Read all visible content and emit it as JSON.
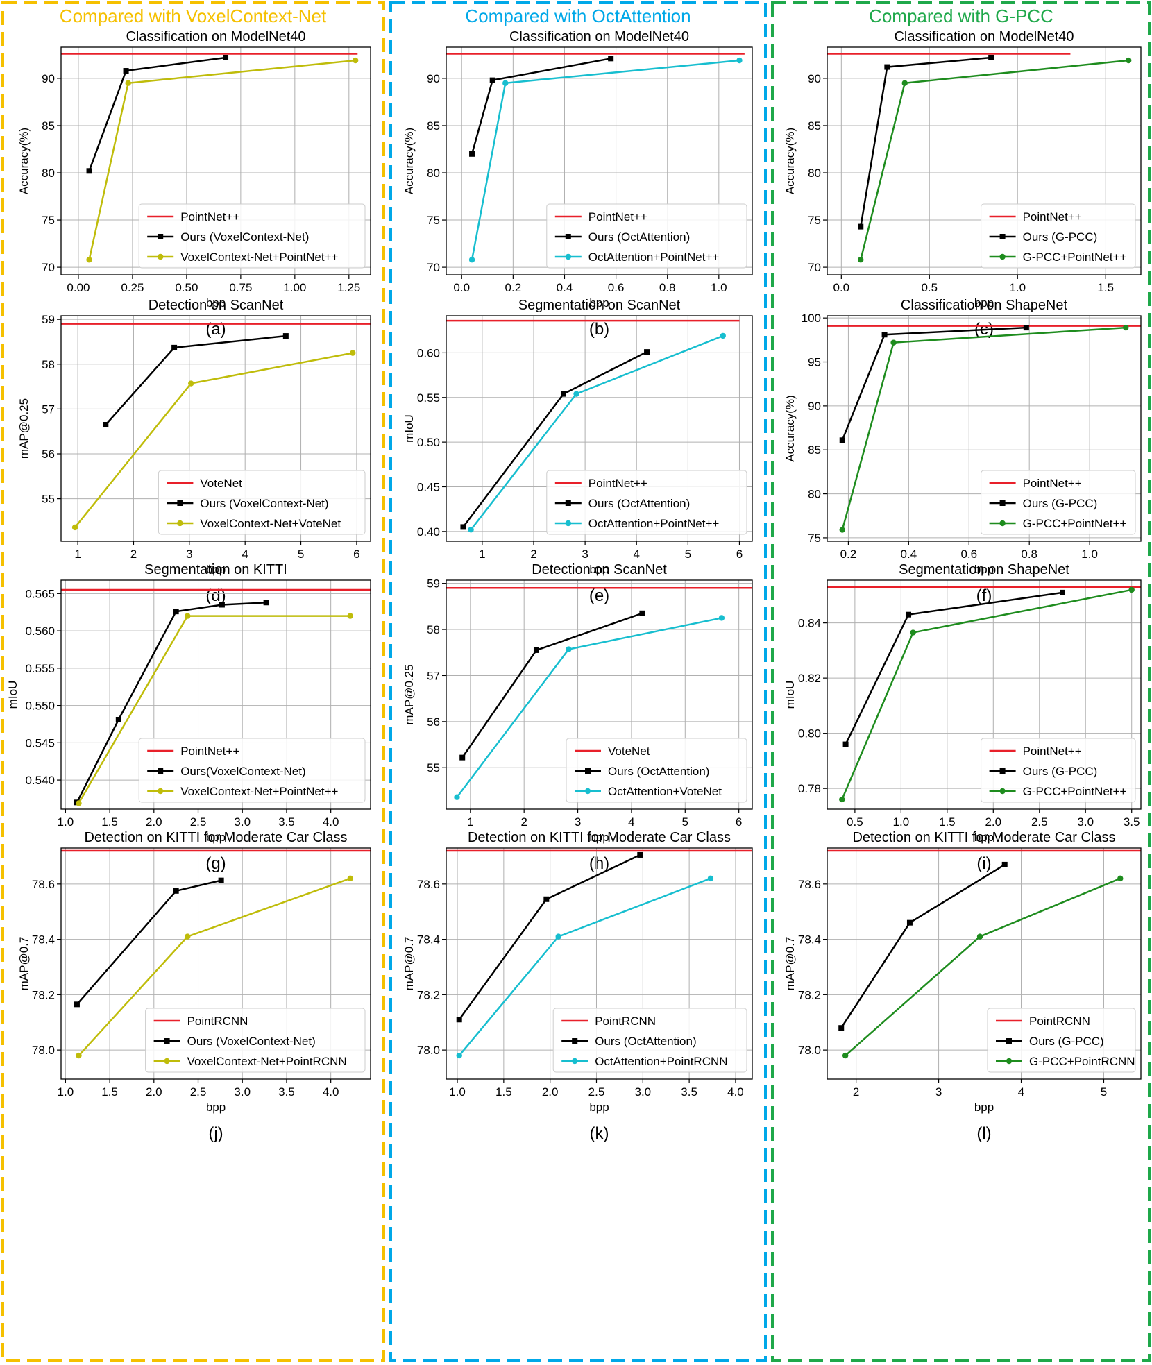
{
  "colors": {
    "yellow": "#F5C000",
    "blue": "#00A8E8",
    "green": "#1FA84A",
    "olive": "#BFBC0A",
    "teal": "#17BECF",
    "dkgreen": "#1E8C1E",
    "red": "#E8202A",
    "black": "#000000"
  },
  "columns": [
    {
      "title": "Compared with VoxelContext-Net",
      "color": "yellow"
    },
    {
      "title": "Compared with OctAttention",
      "color": "blue"
    },
    {
      "title": "Compared with G-PCC",
      "color": "green"
    }
  ],
  "chart_data": [
    {
      "panel": "(a)",
      "type": "line",
      "title": "Classification on ModelNet40",
      "xlabel": "bpp",
      "ylabel": "Accuracy(%)",
      "xlim": [
        -0.08,
        1.35
      ],
      "ylim": [
        69.2,
        93.3
      ],
      "xticks": [
        0,
        0.25,
        0.5,
        0.75,
        1,
        1.25
      ],
      "xtick_labels": [
        "0.00",
        "0.25",
        "0.50",
        "0.75",
        "1.00",
        "1.25"
      ],
      "yticks": [
        70,
        75,
        80,
        85,
        90
      ],
      "yticks_labels": [
        "70",
        "75",
        "80",
        "85",
        "90"
      ],
      "baseline": {
        "name": "PointNet++",
        "value": 92.6,
        "x_end": 1.29
      },
      "series": [
        {
          "name": "Ours (VoxelContext-Net)",
          "color": "black",
          "marker": "square",
          "x": [
            0.05,
            0.22,
            0.68
          ],
          "y": [
            80.2,
            90.8,
            92.2
          ]
        },
        {
          "name": "VoxelContext-Net+PointNet++",
          "color": "olive",
          "marker": "circle",
          "x": [
            0.05,
            0.23,
            1.28
          ],
          "y": [
            70.8,
            89.5,
            91.9
          ]
        }
      ]
    },
    {
      "panel": "(b)",
      "type": "line",
      "title": "Classification on ModelNet40",
      "xlabel": "bpp",
      "ylabel": "Accuracy(%)",
      "xlim": [
        -0.06,
        1.13
      ],
      "ylim": [
        69.2,
        93.3
      ],
      "xticks": [
        0,
        0.2,
        0.4,
        0.6,
        0.8,
        1
      ],
      "xtick_labels": [
        "0.0",
        "0.2",
        "0.4",
        "0.6",
        "0.8",
        "1.0"
      ],
      "yticks": [
        70,
        75,
        80,
        85,
        90
      ],
      "yticks_labels": [
        "70",
        "75",
        "80",
        "85",
        "90"
      ],
      "baseline": {
        "name": "PointNet++",
        "value": 92.6,
        "x_end": 1.1
      },
      "series": [
        {
          "name": "Ours (OctAttention)",
          "color": "black",
          "marker": "square",
          "x": [
            0.04,
            0.12,
            0.58
          ],
          "y": [
            82.0,
            89.8,
            92.1
          ]
        },
        {
          "name": "OctAttention+PointNet++",
          "color": "teal",
          "marker": "circle",
          "x": [
            0.04,
            0.17,
            1.08
          ],
          "y": [
            70.8,
            89.5,
            91.9
          ]
        }
      ]
    },
    {
      "panel": "(c)",
      "type": "line",
      "title": "Classification on ModelNet40",
      "xlabel": "bpp",
      "ylabel": "Accuracy(%)",
      "xlim": [
        -0.08,
        1.7
      ],
      "ylim": [
        69.2,
        93.3
      ],
      "xticks": [
        0,
        0.5,
        1,
        1.5
      ],
      "xtick_labels": [
        "0.0",
        "0.5",
        "1.0",
        "1.5"
      ],
      "yticks": [
        70,
        75,
        80,
        85,
        90
      ],
      "yticks_labels": [
        "70",
        "75",
        "80",
        "85",
        "90"
      ],
      "baseline": {
        "name": "PointNet++",
        "value": 92.6,
        "x_end": 1.3
      },
      "series": [
        {
          "name": "Ours (G-PCC)",
          "color": "black",
          "marker": "square",
          "x": [
            0.11,
            0.26,
            0.85
          ],
          "y": [
            74.3,
            91.2,
            92.2
          ]
        },
        {
          "name": "G-PCC+PointNet++",
          "color": "dkgreen",
          "marker": "circle",
          "x": [
            0.11,
            0.36,
            1.63
          ],
          "y": [
            70.8,
            89.5,
            91.9
          ]
        }
      ]
    },
    {
      "panel": "(d)",
      "type": "line",
      "title": "Detection on ScanNet",
      "xlabel": "bpp",
      "ylabel": "mAP@0.25",
      "xlim": [
        0.7,
        6.25
      ],
      "ylim": [
        54.05,
        59.08
      ],
      "xticks": [
        1,
        2,
        3,
        4,
        5,
        6
      ],
      "xtick_labels": [
        "1",
        "2",
        "3",
        "4",
        "5",
        "6"
      ],
      "yticks": [
        55,
        56,
        57,
        58,
        59
      ],
      "yticks_labels": [
        "55",
        "56",
        "57",
        "58",
        "59"
      ],
      "baseline": {
        "name": "VoteNet",
        "value": 58.9,
        "x_end": 6.25
      },
      "series": [
        {
          "name": "Ours (VoxelContext-Net)",
          "color": "black",
          "marker": "square",
          "x": [
            1.5,
            2.73,
            4.73
          ],
          "y": [
            56.65,
            58.37,
            58.63
          ]
        },
        {
          "name": "VoxelContext-Net+VoteNet",
          "color": "olive",
          "marker": "circle",
          "x": [
            0.95,
            3.03,
            5.93
          ],
          "y": [
            54.36,
            57.57,
            58.25
          ]
        }
      ]
    },
    {
      "panel": "(e)",
      "type": "line",
      "title": "Segmentation on ScanNet",
      "xlabel": "bpp",
      "ylabel": "mIoU",
      "xlim": [
        0.3,
        6.25
      ],
      "ylim": [
        0.389,
        0.6415
      ],
      "xticks": [
        1,
        2,
        3,
        4,
        5,
        6
      ],
      "xtick_labels": [
        "1",
        "2",
        "3",
        "4",
        "5",
        "6"
      ],
      "yticks": [
        0.4,
        0.45,
        0.5,
        0.55,
        0.6
      ],
      "yticks_labels": [
        "0.40",
        "0.45",
        "0.50",
        "0.55",
        "0.60"
      ],
      "baseline": {
        "name": "PointNet++",
        "value": 0.636,
        "x_end": 6.0
      },
      "series": [
        {
          "name": "Ours (OctAttention)",
          "color": "black",
          "marker": "square",
          "x": [
            0.63,
            2.58,
            4.2
          ],
          "y": [
            0.405,
            0.554,
            0.601
          ]
        },
        {
          "name": "OctAttention+PointNet++",
          "color": "teal",
          "marker": "circle",
          "x": [
            0.78,
            2.83,
            5.68
          ],
          "y": [
            0.402,
            0.554,
            0.619
          ]
        }
      ]
    },
    {
      "panel": "(f)",
      "type": "line",
      "title": "Classification on ShapeNet",
      "xlabel": "bpp",
      "ylabel": "Accuracy(%)",
      "xlim": [
        0.13,
        1.17
      ],
      "ylim": [
        74.6,
        100.25
      ],
      "xticks": [
        0.2,
        0.4,
        0.6,
        0.8,
        1
      ],
      "xtick_labels": [
        "0.2",
        "0.4",
        "0.6",
        "0.8",
        "1.0"
      ],
      "yticks": [
        75,
        80,
        85,
        90,
        95,
        100
      ],
      "yticks_labels": [
        "75",
        "80",
        "85",
        "90",
        "95",
        "100"
      ],
      "baseline": {
        "name": "PointNet++",
        "value": 99.1,
        "x_end": 1.17
      },
      "series": [
        {
          "name": "Ours (G-PCC)",
          "color": "black",
          "marker": "square",
          "x": [
            0.18,
            0.32,
            0.79
          ],
          "y": [
            86.1,
            98.1,
            98.9
          ]
        },
        {
          "name": "G-PCC+PointNet++",
          "color": "dkgreen",
          "marker": "circle",
          "x": [
            0.18,
            0.35,
            1.12
          ],
          "y": [
            75.9,
            97.2,
            98.9
          ]
        }
      ]
    },
    {
      "panel": "(g)",
      "type": "line",
      "title": "Segmentation on KITTI",
      "xlabel": "bpp",
      "ylabel": "mIoU",
      "xlim": [
        0.95,
        4.45
      ],
      "ylim": [
        0.5361,
        0.5668
      ],
      "xticks": [
        1,
        1.5,
        2,
        2.5,
        3,
        3.5,
        4
      ],
      "xtick_labels": [
        "1.0",
        "1.5",
        "2.0",
        "2.5",
        "3.0",
        "3.5",
        "4.0"
      ],
      "yticks": [
        0.54,
        0.545,
        0.55,
        0.555,
        0.56,
        0.565
      ],
      "yticks_labels": [
        "0.540",
        "0.545",
        "0.550",
        "0.555",
        "0.560",
        "0.565"
      ],
      "baseline": {
        "name": "PointNet++",
        "value": 0.5655,
        "x_end": 4.45
      },
      "series": [
        {
          "name": "Ours(VoxelContext-Net)",
          "color": "black",
          "marker": "square",
          "x": [
            1.13,
            1.6,
            2.25,
            2.77,
            3.27
          ],
          "y": [
            0.537,
            0.5481,
            0.5626,
            0.5635,
            0.5638
          ]
        },
        {
          "name": "VoxelContext-Net+PointNet++",
          "color": "olive",
          "marker": "circle",
          "x": [
            1.15,
            2.38,
            4.22
          ],
          "y": [
            0.5369,
            0.562,
            0.562
          ]
        }
      ]
    },
    {
      "panel": "(h)",
      "type": "line",
      "title": "Detection on ScanNet",
      "xlabel": "bpp",
      "ylabel": "mAP@0.25",
      "xlim": [
        0.55,
        6.25
      ],
      "ylim": [
        54.1,
        59.07
      ],
      "xticks": [
        1,
        2,
        3,
        4,
        5,
        6
      ],
      "xtick_labels": [
        "1",
        "2",
        "3",
        "4",
        "5",
        "6"
      ],
      "yticks": [
        55,
        56,
        57,
        58,
        59
      ],
      "yticks_labels": [
        "55",
        "56",
        "57",
        "58",
        "59"
      ],
      "baseline": {
        "name": "VoteNet",
        "value": 58.9,
        "x_end": 6.25
      },
      "series": [
        {
          "name": "Ours (OctAttention)",
          "color": "black",
          "marker": "square",
          "x": [
            0.85,
            2.23,
            4.2
          ],
          "y": [
            55.22,
            57.55,
            58.35
          ]
        },
        {
          "name": "OctAttention+VoteNet",
          "color": "teal",
          "marker": "circle",
          "x": [
            0.75,
            2.83,
            5.68
          ],
          "y": [
            54.36,
            57.57,
            58.25
          ]
        }
      ]
    },
    {
      "panel": "(i)",
      "type": "line",
      "title": "Segmentation on ShapeNet",
      "xlabel": "bpp",
      "ylabel": "mIoU",
      "xlim": [
        0.2,
        3.6
      ],
      "ylim": [
        0.7725,
        0.8555
      ],
      "xticks": [
        0.5,
        1,
        1.5,
        2,
        2.5,
        3,
        3.5
      ],
      "xtick_labels": [
        "0.5",
        "1.0",
        "1.5",
        "2.0",
        "2.5",
        "3.0",
        "3.5"
      ],
      "yticks": [
        0.78,
        0.8,
        0.82,
        0.84
      ],
      "yticks_labels": [
        "0.78",
        "0.80",
        "0.82",
        "0.84"
      ],
      "baseline": {
        "name": "PointNet++",
        "value": 0.853,
        "x_end": 3.6
      },
      "series": [
        {
          "name": "Ours (G-PCC)",
          "color": "black",
          "marker": "square",
          "x": [
            0.4,
            1.08,
            2.75
          ],
          "y": [
            0.796,
            0.843,
            0.851
          ]
        },
        {
          "name": "G-PCC+PointNet++",
          "color": "dkgreen",
          "marker": "circle",
          "x": [
            0.36,
            1.13,
            3.5
          ],
          "y": [
            0.776,
            0.8365,
            0.852
          ]
        }
      ]
    },
    {
      "panel": "(j)",
      "type": "line",
      "title": "Detection on KITTI for Moderate Car Class",
      "xlabel": "bpp",
      "ylabel": "mAP@0.7",
      "xlim": [
        0.95,
        4.45
      ],
      "ylim": [
        77.895,
        78.73
      ],
      "xticks": [
        1,
        1.5,
        2,
        2.5,
        3,
        3.5,
        4
      ],
      "xtick_labels": [
        "1.0",
        "1.5",
        "2.0",
        "2.5",
        "3.0",
        "3.5",
        "4.0"
      ],
      "yticks": [
        78,
        78.2,
        78.4,
        78.6
      ],
      "yticks_labels": [
        "78.0",
        "78.2",
        "78.4",
        "78.6"
      ],
      "baseline": {
        "name": "PointRCNN",
        "value": 78.72,
        "x_end": 4.45
      },
      "series": [
        {
          "name": "Ours (VoxelContext-Net)",
          "color": "black",
          "marker": "square",
          "x": [
            1.13,
            2.25,
            2.76
          ],
          "y": [
            78.165,
            78.575,
            78.613
          ]
        },
        {
          "name": "VoxelContext-Net+PointRCNN",
          "color": "olive",
          "marker": "circle",
          "x": [
            1.15,
            2.38,
            4.22
          ],
          "y": [
            77.98,
            78.41,
            78.62
          ]
        }
      ]
    },
    {
      "panel": "(k)",
      "type": "line",
      "title": "Detection on KITTI for Moderate Car Class",
      "xlabel": "bpp",
      "ylabel": "mAP@0.7",
      "xlim": [
        0.88,
        4.18
      ],
      "ylim": [
        77.895,
        78.73
      ],
      "xticks": [
        1,
        1.5,
        2,
        2.5,
        3,
        3.5,
        4
      ],
      "xtick_labels": [
        "1.0",
        "1.5",
        "2.0",
        "2.5",
        "3.0",
        "3.5",
        "4.0"
      ],
      "yticks": [
        78,
        78.2,
        78.4,
        78.6
      ],
      "yticks_labels": [
        "78.0",
        "78.2",
        "78.4",
        "78.6"
      ],
      "baseline": {
        "name": "PointRCNN",
        "value": 78.72,
        "x_end": 4.18
      },
      "series": [
        {
          "name": "Ours (OctAttention)",
          "color": "black",
          "marker": "square",
          "x": [
            1.02,
            1.96,
            2.97
          ],
          "y": [
            78.11,
            78.545,
            78.705
          ]
        },
        {
          "name": "OctAttention+PointRCNN",
          "color": "teal",
          "marker": "circle",
          "x": [
            1.02,
            2.09,
            3.73
          ],
          "y": [
            77.98,
            78.41,
            78.62
          ]
        }
      ]
    },
    {
      "panel": "(l)",
      "type": "line",
      "title": "Detection on KITTI for Moderate Car Class",
      "xlabel": "bpp",
      "ylabel": "mAP@0.7",
      "xlim": [
        1.65,
        5.45
      ],
      "ylim": [
        77.895,
        78.73
      ],
      "xticks": [
        2,
        3,
        4,
        5
      ],
      "xtick_labels": [
        "2",
        "3",
        "4",
        "5"
      ],
      "yticks": [
        78,
        78.2,
        78.4,
        78.6
      ],
      "yticks_labels": [
        "78.0",
        "78.2",
        "78.4",
        "78.6"
      ],
      "baseline": {
        "name": "PointRCNN",
        "value": 78.72,
        "x_end": 5.45
      },
      "series": [
        {
          "name": "Ours (G-PCC)",
          "color": "black",
          "marker": "square",
          "x": [
            1.82,
            2.65,
            3.8
          ],
          "y": [
            78.08,
            78.46,
            78.67
          ]
        },
        {
          "name": "G-PCC+PointRCNN",
          "color": "dkgreen",
          "marker": "circle",
          "x": [
            1.87,
            3.5,
            5.2
          ],
          "y": [
            77.98,
            78.41,
            78.62
          ]
        }
      ]
    }
  ]
}
